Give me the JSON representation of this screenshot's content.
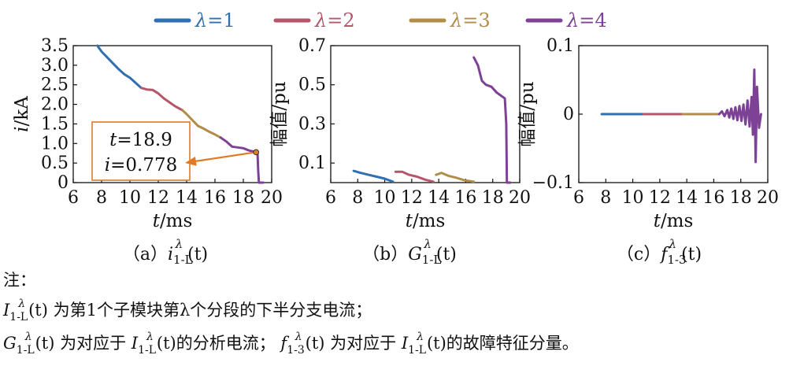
{
  "legend": [
    {
      "label": "λ=1",
      "color": "#2f6fb2"
    },
    {
      "label": "λ=2",
      "color": "#b5566a"
    },
    {
      "label": "λ=3",
      "color": "#b08d4a"
    },
    {
      "label": "λ=4",
      "color": "#7d4195"
    }
  ],
  "chart_data": [
    {
      "type": "line",
      "caption": "（a）i1-Lλ(t)",
      "caption_parts": {
        "prefix": "（a）",
        "main": "i",
        "sub": "1-L",
        "sup": "λ",
        "suffix": "(t)"
      },
      "xlabel_italic": "t",
      "xlabel_unit": "/ms",
      "ylabel_italic": "i",
      "ylabel_unit": "/kA",
      "xlim": [
        6,
        20
      ],
      "ylim": [
        0,
        3.5
      ],
      "xticks": [
        6,
        8,
        10,
        12,
        14,
        16,
        18,
        20
      ],
      "yticks": [
        0,
        0.5,
        1.0,
        1.5,
        2.0,
        2.5,
        3.0,
        3.5
      ],
      "ytick_labels": [
        "0",
        "0.5",
        "1.0",
        "1.5",
        "2.0",
        "2.5",
        "3.0",
        "3.5"
      ],
      "series": [
        {
          "name": "λ=1",
          "color": "#2f6fb2",
          "x": [
            7.7,
            8.0,
            8.4,
            8.8,
            9.2,
            9.6,
            10.0,
            10.4,
            10.8
          ],
          "y": [
            3.5,
            3.35,
            3.2,
            3.05,
            2.9,
            2.77,
            2.68,
            2.55,
            2.42
          ]
        },
        {
          "name": "λ=2",
          "color": "#b5566a",
          "x": [
            10.8,
            11.2,
            11.6,
            12.0,
            12.4,
            12.8,
            13.2,
            13.7
          ],
          "y": [
            2.42,
            2.38,
            2.37,
            2.28,
            2.15,
            2.05,
            1.95,
            1.85
          ]
        },
        {
          "name": "λ=3",
          "color": "#b08d4a",
          "x": [
            13.7,
            14.0,
            14.4,
            14.8,
            15.2,
            15.6,
            16.0,
            16.4
          ],
          "y": [
            1.85,
            1.75,
            1.6,
            1.45,
            1.38,
            1.3,
            1.23,
            1.15
          ]
        },
        {
          "name": "λ=4",
          "color": "#7d4195",
          "x": [
            16.4,
            16.8,
            17.2,
            17.6,
            18.0,
            18.4,
            18.9,
            19.0,
            19.05,
            19.1,
            19.4
          ],
          "y": [
            1.15,
            1.05,
            0.92,
            0.9,
            0.88,
            0.82,
            0.778,
            0.77,
            0.3,
            0.0,
            0.0
          ]
        }
      ],
      "annotation": {
        "x": 18.9,
        "y": 0.778,
        "line1": "t=18.9",
        "line2": "i=0.778",
        "line1_var": "t",
        "line1_val": "=18.9",
        "line2_var": "i",
        "line2_val": "=0.778",
        "color": "#e07a24"
      }
    },
    {
      "type": "line",
      "caption": "（b）G1-Lλ(t)",
      "caption_parts": {
        "prefix": "（b）",
        "main": "G",
        "sub": "1-L",
        "sup": "λ",
        "suffix": "(t)"
      },
      "xlabel_italic": "t",
      "xlabel_unit": "/ms",
      "ylabel_italic": "",
      "ylabel_unit": "幅值/pu",
      "xlim": [
        6,
        20
      ],
      "ylim": [
        0,
        0.7
      ],
      "xticks": [
        6,
        8,
        10,
        12,
        14,
        16,
        18,
        20
      ],
      "yticks": [
        0.1,
        0.3,
        0.5,
        0.7
      ],
      "ytick_labels": [
        "0.1",
        "0.3",
        "0.5",
        "0.7"
      ],
      "series": [
        {
          "name": "λ=1",
          "color": "#2f6fb2",
          "x": [
            7.7,
            8.2,
            8.8,
            9.4,
            10.0,
            10.6
          ],
          "y": [
            0.06,
            0.05,
            0.04,
            0.03,
            0.02,
            0.005
          ]
        },
        {
          "name": "λ=2",
          "color": "#b5566a",
          "x": [
            10.8,
            11.3,
            11.8,
            12.4,
            13.0,
            13.6
          ],
          "y": [
            0.055,
            0.055,
            0.04,
            0.03,
            0.015,
            0.005
          ]
        },
        {
          "name": "λ=3",
          "color": "#b08d4a",
          "x": [
            13.8,
            14.2,
            14.7,
            15.3,
            15.9,
            16.6
          ],
          "y": [
            0.04,
            0.05,
            0.035,
            0.025,
            0.012,
            0.005
          ]
        },
        {
          "name": "λ=4",
          "color": "#7d4195",
          "x": [
            16.6,
            16.9,
            17.2,
            17.5,
            17.9,
            18.3,
            18.7,
            18.9,
            19.0,
            19.05,
            19.3
          ],
          "y": [
            0.64,
            0.6,
            0.52,
            0.5,
            0.49,
            0.46,
            0.44,
            0.43,
            0.3,
            0.0,
            0.0
          ]
        }
      ]
    },
    {
      "type": "line",
      "caption": "（c）f1-3λ(t)",
      "caption_parts": {
        "prefix": "（c）",
        "main": "f",
        "sub": "1-3",
        "sup": "λ",
        "suffix": "(t)"
      },
      "xlabel_italic": "t",
      "xlabel_unit": "/ms",
      "ylabel_italic": "",
      "ylabel_unit": "幅值/pu",
      "xlim": [
        6,
        20
      ],
      "ylim": [
        -0.1,
        0.1
      ],
      "xticks": [
        6,
        8,
        10,
        12,
        14,
        16,
        18,
        20
      ],
      "yticks": [
        -0.1,
        0,
        0.1
      ],
      "ytick_labels": [
        "−0.1",
        "0",
        "0.1"
      ],
      "series": [
        {
          "name": "λ=1",
          "color": "#2f6fb2",
          "x": [
            7.7,
            10.8
          ],
          "y": [
            0,
            0
          ]
        },
        {
          "name": "λ=2",
          "color": "#b5566a",
          "x": [
            10.8,
            13.7
          ],
          "y": [
            0,
            0
          ]
        },
        {
          "name": "λ=3",
          "color": "#b08d4a",
          "x": [
            13.7,
            16.4
          ],
          "y": [
            0,
            0
          ]
        },
        {
          "name": "λ=4",
          "color": "#7d4195",
          "x": [
            16.4,
            16.6,
            16.8,
            17.0,
            17.15,
            17.3,
            17.45,
            17.6,
            17.75,
            17.9,
            18.05,
            18.2,
            18.35,
            18.5,
            18.65,
            18.8,
            18.9,
            19.0,
            19.1,
            19.2,
            19.35,
            19.5
          ],
          "y": [
            0,
            0.004,
            -0.003,
            0.006,
            -0.005,
            0.008,
            -0.007,
            0.01,
            -0.009,
            0.012,
            -0.01,
            0.014,
            -0.015,
            0.02,
            -0.018,
            0.025,
            -0.03,
            0.065,
            -0.07,
            0.04,
            -0.02,
            0.0
          ]
        }
      ]
    }
  ],
  "notes": {
    "title": "注：",
    "line1": {
      "symbol_main": "I",
      "symbol_sub": "1-L",
      "symbol_sup": "λ",
      "symbol_suffix": "(t)",
      "text": "为第1个子模块第λ个分段的下半分支电流；"
    },
    "line2": {
      "symbol_main": "G",
      "symbol_sub": "1-L",
      "symbol_sup": "λ",
      "symbol_suffix": "(t)",
      "text_a": "为对应于",
      "ref_main": "I",
      "ref_sub": "1-L",
      "ref_sup": "λ",
      "ref_suffix": "(t)",
      "text_b": "的分析电流；",
      "f_main": "f",
      "f_sub": "1-3",
      "f_sup": "λ",
      "f_suffix": "(t)",
      "text_c": "为对应于",
      "ref2_main": "I",
      "ref2_sub": "1-L",
      "ref2_sup": "λ",
      "ref2_suffix": "(t)",
      "text_d": "的故障特征分量。"
    }
  }
}
